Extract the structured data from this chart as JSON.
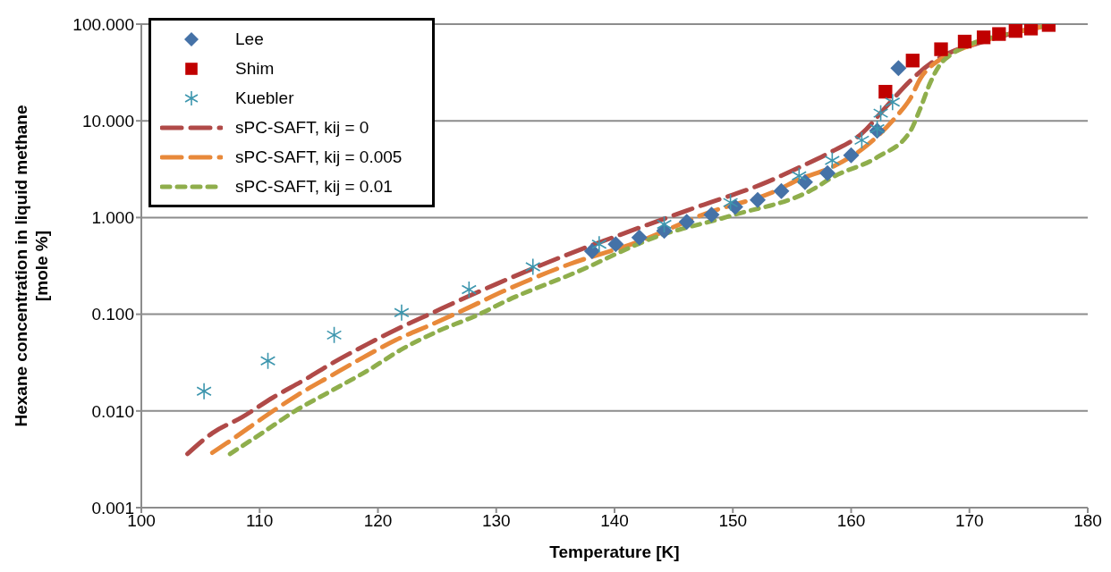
{
  "chart_data": {
    "type": "scatter",
    "xlabel": "Temperature [K]",
    "ylabel": "Hexane concentration in liquid methane\n[mole %]",
    "log": "y",
    "grid": "y",
    "legend": "top left",
    "xlim": [
      100,
      180
    ],
    "xticks": [
      100,
      110,
      120,
      130,
      140,
      150,
      160,
      170,
      180
    ],
    "ylim": [
      0.001,
      100
    ],
    "yticks": [
      {
        "value": 0.001,
        "label": "0.001"
      },
      {
        "value": 0.01,
        "label": "0.010"
      },
      {
        "value": 0.1,
        "label": "0.100"
      },
      {
        "value": 1,
        "label": "1.000"
      },
      {
        "value": 10,
        "label": "10.000"
      },
      {
        "value": 100,
        "label": "100.000"
      }
    ],
    "series": [
      {
        "name": "Lee",
        "marker": "diamond",
        "color": "#4572a7",
        "x": [
          138.1,
          140.1,
          142.1,
          144.2,
          146.1,
          148.2,
          150.2,
          152.1,
          154.1,
          156.1,
          158.0,
          160.0,
          162.2,
          164.0
        ],
        "values": [
          0.45,
          0.53,
          0.62,
          0.73,
          0.9,
          1.07,
          1.29,
          1.52,
          1.88,
          2.33,
          2.88,
          4.4,
          7.9,
          35
        ]
      },
      {
        "name": "Shim",
        "marker": "square",
        "color": "#c00000",
        "x": [
          162.9,
          165.2,
          167.6,
          169.6,
          171.2,
          172.5,
          173.9,
          175.2,
          176.7
        ],
        "values": [
          20,
          42,
          55,
          66,
          73,
          79,
          85,
          90,
          98
        ]
      },
      {
        "name": "Kuebler",
        "marker": "cross",
        "color": "#3d96ae",
        "x": [
          105.3,
          110.7,
          116.3,
          122.0,
          127.7,
          133.1,
          138.7,
          144.2,
          149.8,
          155.6,
          158.4,
          160.9,
          162.2,
          162.5,
          163.5
        ],
        "values": [
          0.016,
          0.033,
          0.061,
          0.104,
          0.18,
          0.31,
          0.53,
          0.85,
          1.43,
          2.7,
          3.9,
          6.3,
          8.3,
          12,
          15.6
        ]
      },
      {
        "name": "sPC-SAFT, kij = 0",
        "type": "line",
        "line_style": "dashed",
        "color": "#b04a48",
        "x": [
          103.9,
          106.0,
          108.5,
          111.1,
          113.8,
          116.3,
          119.1,
          121.7,
          124.5,
          127.1,
          130.0,
          135.7,
          141.4,
          147.0,
          152.9,
          155.6,
          158.2,
          160.9,
          163.1,
          165.0,
          167.2,
          168.7,
          170.5,
          173.5,
          176.7
        ],
        "values": [
          0.0036,
          0.0059,
          0.0086,
          0.0137,
          0.021,
          0.032,
          0.049,
          0.071,
          0.102,
          0.143,
          0.205,
          0.4,
          0.73,
          1.29,
          2.33,
          3.3,
          4.7,
          7.4,
          14.6,
          26,
          43,
          53,
          62,
          80,
          97
        ]
      },
      {
        "name": "sPC-SAFT, kij = 0.005",
        "type": "line",
        "line_style": "dashed",
        "color": "#e8893a",
        "x": [
          106.0,
          107.7,
          110.7,
          113.2,
          116.0,
          118.8,
          121.5,
          124.6,
          127.6,
          130.6,
          136.2,
          142.0,
          147.8,
          153.6,
          155.6,
          158.4,
          161.2,
          163.7,
          165.0,
          165.9,
          166.9,
          168.2,
          169.7,
          173.5,
          176.7
        ],
        "values": [
          0.0037,
          0.0051,
          0.0092,
          0.0146,
          0.023,
          0.036,
          0.054,
          0.079,
          0.116,
          0.173,
          0.33,
          0.56,
          1.11,
          1.88,
          2.48,
          3.33,
          5.4,
          10.7,
          17,
          28,
          38,
          48,
          58,
          80,
          97
        ]
      },
      {
        "name": "sPC-SAFT, kij = 0.01",
        "type": "line",
        "line_style": "dotted",
        "color": "#8fae4c",
        "x": [
          107.5,
          110.2,
          113.0,
          116.0,
          119.1,
          122.1,
          125.1,
          128.4,
          131.0,
          136.7,
          143.5,
          149.8,
          156.9,
          158.4,
          162.2,
          165.0,
          165.8,
          166.7,
          167.5,
          168.4,
          169.7,
          173.5,
          176.7
        ],
        "values": [
          0.0036,
          0.0059,
          0.01,
          0.016,
          0.026,
          0.044,
          0.067,
          0.098,
          0.14,
          0.27,
          0.63,
          1.04,
          2.0,
          2.6,
          4.2,
          7.8,
          13,
          25,
          38,
          48,
          59,
          81,
          97
        ]
      }
    ]
  }
}
